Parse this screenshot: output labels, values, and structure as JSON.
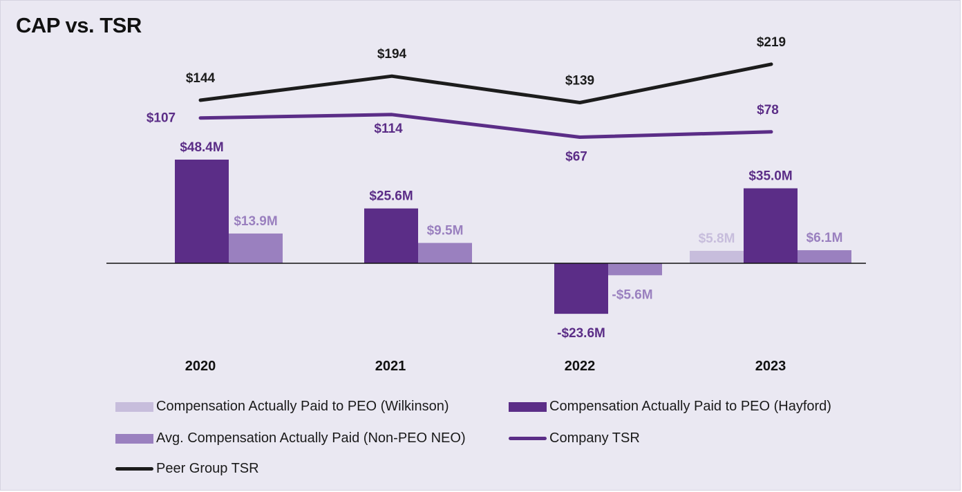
{
  "title": "CAP vs. TSR",
  "colors": {
    "wilkinson": "#c7bddc",
    "hayford": "#5b2d87",
    "neo": "#9a80bf",
    "company_tsr": "#5b2d87",
    "peer_tsr": "#1c1c1c",
    "axis": "#111111"
  },
  "chart_data": {
    "type": "bar+line",
    "title": "CAP vs. TSR",
    "categories": [
      "2020",
      "2021",
      "2022",
      "2023"
    ],
    "series": [
      {
        "name": "Compensation Actually Paid to PEO (Wilkinson)",
        "type": "bar",
        "unit": "$M",
        "values": [
          null,
          null,
          null,
          5.8
        ],
        "labels": [
          "",
          "",
          "",
          "$5.8M"
        ]
      },
      {
        "name": "Compensation Actually Paid to PEO (Hayford)",
        "type": "bar",
        "unit": "$M",
        "values": [
          48.4,
          25.6,
          -23.6,
          35.0
        ],
        "labels": [
          "$48.4M",
          "$25.6M",
          "-$23.6M",
          "$35.0M"
        ]
      },
      {
        "name": "Avg. Compensation Actually Paid (Non-PEO NEO)",
        "type": "bar",
        "unit": "$M",
        "values": [
          13.9,
          9.5,
          -5.6,
          6.1
        ],
        "labels": [
          "$13.9M",
          "$9.5M",
          "-$5.6M",
          "$6.1M"
        ]
      },
      {
        "name": "Company TSR",
        "type": "line",
        "values": [
          107,
          114,
          67,
          78
        ],
        "labels": [
          "$107",
          "$114",
          "$67",
          "$78"
        ]
      },
      {
        "name": "Peer Group TSR",
        "type": "line",
        "values": [
          144,
          194,
          139,
          219
        ],
        "labels": [
          "$144",
          "$194",
          "$139",
          "$219"
        ]
      }
    ],
    "bar_axis": {
      "min": -30,
      "max": 50,
      "unit": "$M"
    },
    "tsr_axis": {
      "min": 50,
      "max": 230
    },
    "legend": [
      {
        "label": "Compensation Actually Paid to PEO (Wilkinson)",
        "kind": "bar",
        "color_key": "wilkinson"
      },
      {
        "label": "Compensation Actually Paid to PEO (Hayford)",
        "kind": "bar",
        "color_key": "hayford"
      },
      {
        "label": "Avg. Compensation Actually Paid (Non-PEO NEO)",
        "kind": "bar",
        "color_key": "neo"
      },
      {
        "label": "Company TSR",
        "kind": "line",
        "color_key": "company_tsr"
      },
      {
        "label": "Peer Group TSR",
        "kind": "line",
        "color_key": "peer_tsr"
      }
    ],
    "legend_position": "bottom",
    "grid": false
  }
}
